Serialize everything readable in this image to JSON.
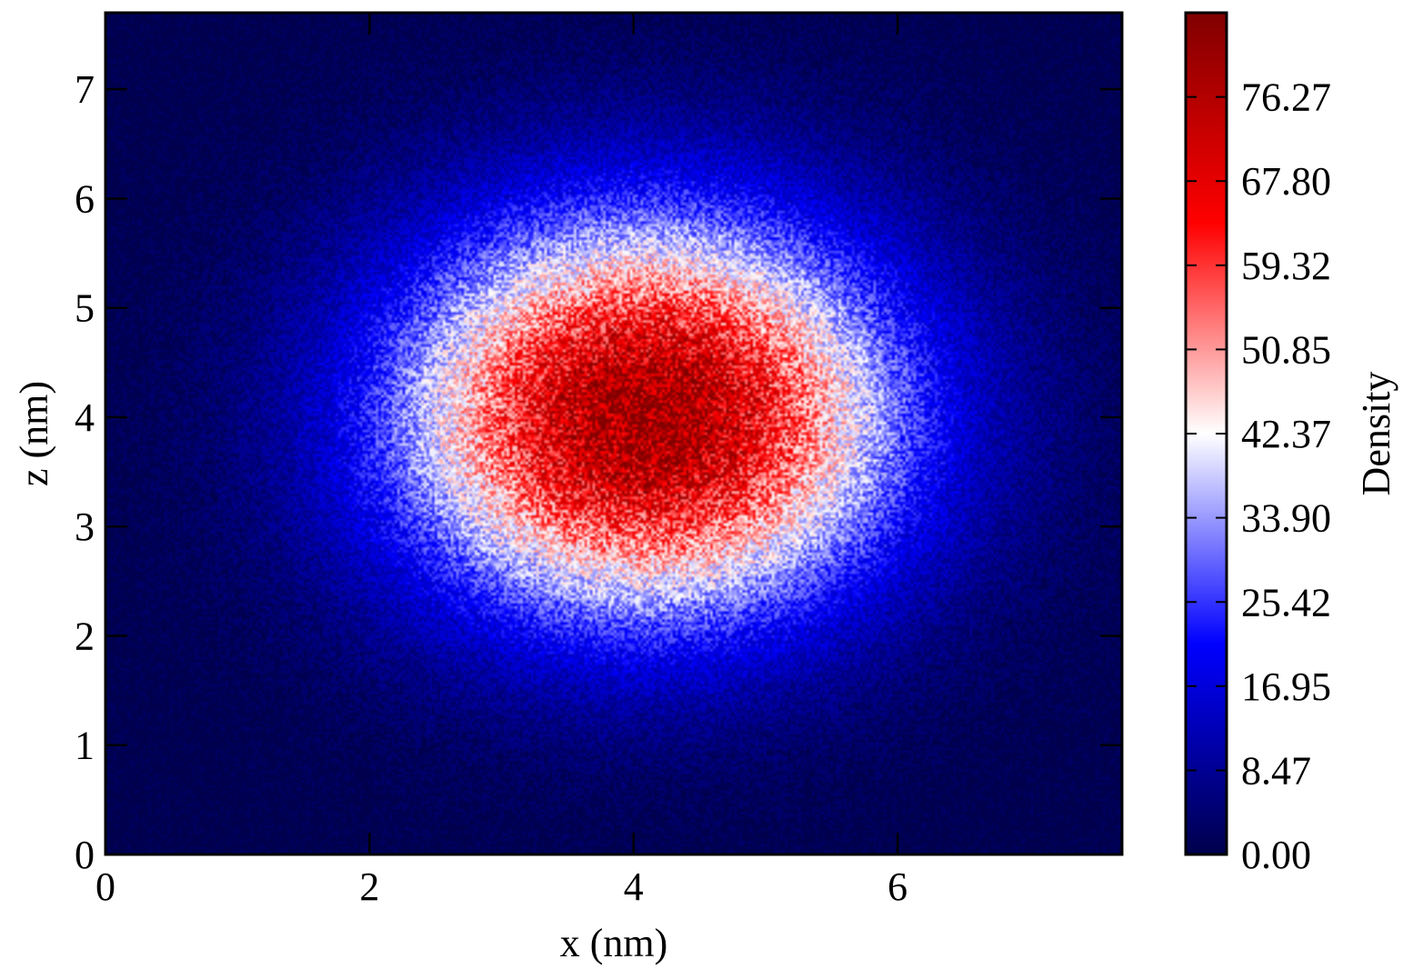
{
  "chart_data": {
    "type": "heatmap",
    "title": "",
    "xlabel": "x (nm)",
    "ylabel": "z (nm)",
    "xlim": [
      0,
      7.7
    ],
    "ylim": [
      0,
      7.7
    ],
    "x_ticks": [
      0,
      2,
      4,
      6
    ],
    "x_tick_labels": [
      "0",
      "2",
      "4",
      "6"
    ],
    "y_ticks": [
      0,
      1,
      2,
      3,
      4,
      5,
      6,
      7
    ],
    "y_tick_labels": [
      "0",
      "1",
      "2",
      "3",
      "4",
      "5",
      "6",
      "7"
    ],
    "colorbar": {
      "label": "Density",
      "range": [
        0,
        84.75
      ],
      "ticks": [
        0.0,
        8.47,
        16.95,
        25.42,
        33.9,
        42.37,
        50.85,
        59.32,
        67.8,
        76.27
      ],
      "tick_labels": [
        "0.00",
        "8.47",
        "16.95",
        "25.42",
        "33.90",
        "42.37",
        "50.85",
        "59.32",
        "67.80",
        "76.27"
      ],
      "colormap": "seismic",
      "colors": [
        "#00004c",
        "#0000ff",
        "#ffffff",
        "#ff0000",
        "#800000"
      ]
    },
    "grid": false,
    "density_peak": {
      "x": 4.1,
      "z": 4.0,
      "value": 80
    },
    "density_spread": {
      "x_sigma": 1.35,
      "z_sigma": 1.3
    }
  }
}
